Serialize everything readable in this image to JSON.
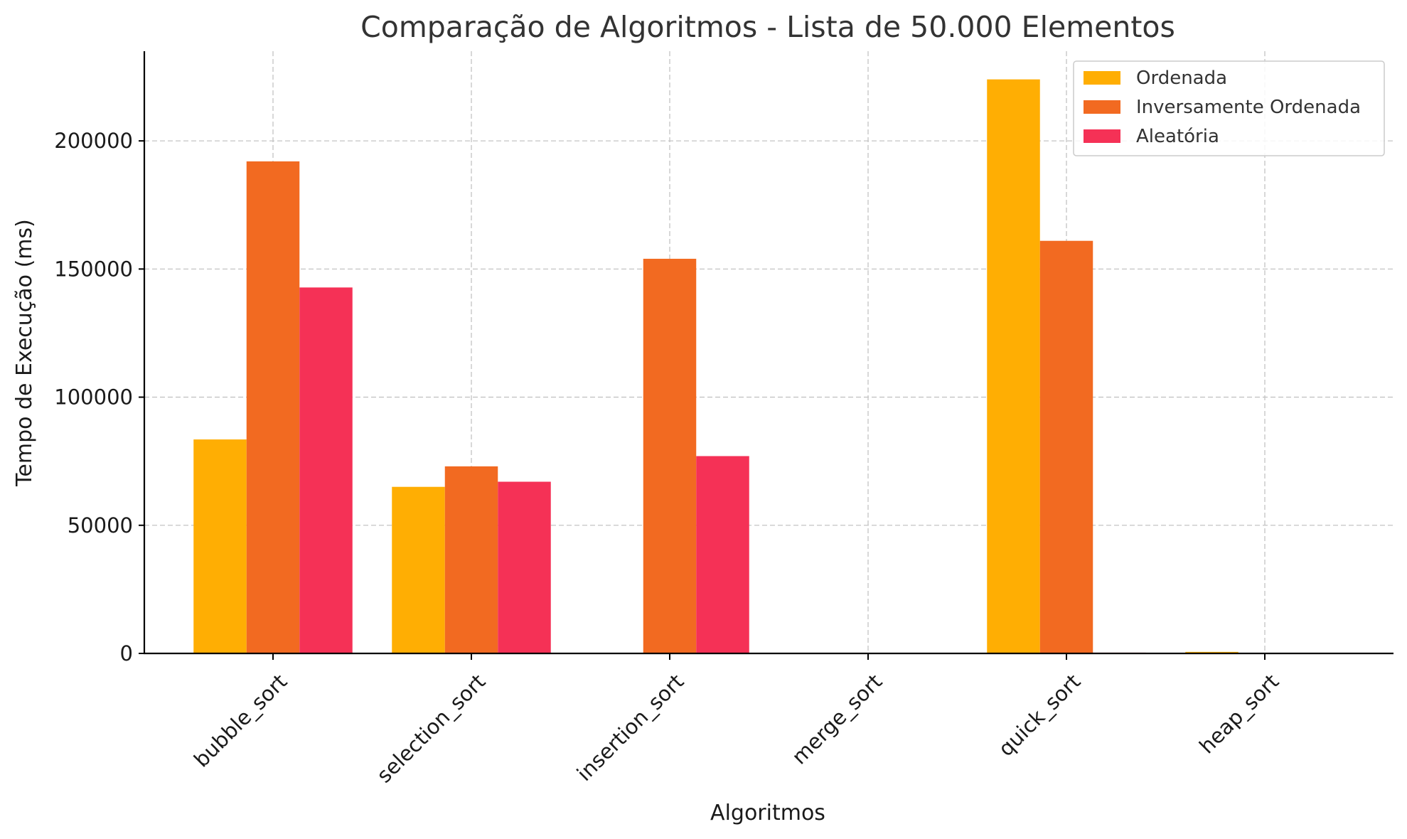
{
  "chart_data": {
    "type": "bar",
    "title": "Comparação de Algoritmos - Lista de 50.000 Elementos",
    "xlabel": "Algoritmos",
    "ylabel": "Tempo de Execução (ms)",
    "categories": [
      "bubble_sort",
      "selection_sort",
      "insertion_sort",
      "merge_sort",
      "quick_sort",
      "heap_sort"
    ],
    "series": [
      {
        "name": "Ordenada",
        "color": "#ffae03",
        "values": [
          83500,
          65000,
          30,
          150,
          224000,
          600
        ]
      },
      {
        "name": "Inversamente Ordenada",
        "color": "#f26a21",
        "values": [
          192000,
          73000,
          154000,
          150,
          161000,
          200
        ]
      },
      {
        "name": "Aleatória",
        "color": "#f53156",
        "values": [
          142800,
          67000,
          77000,
          200,
          300,
          250
        ]
      }
    ],
    "ylim": [
      0,
      235000
    ],
    "yticks": [
      0,
      50000,
      100000,
      150000,
      200000
    ],
    "ytick_labels": [
      "0",
      "50000",
      "100000",
      "150000",
      "200000"
    ],
    "grid": true,
    "legend_position": "top-right"
  }
}
